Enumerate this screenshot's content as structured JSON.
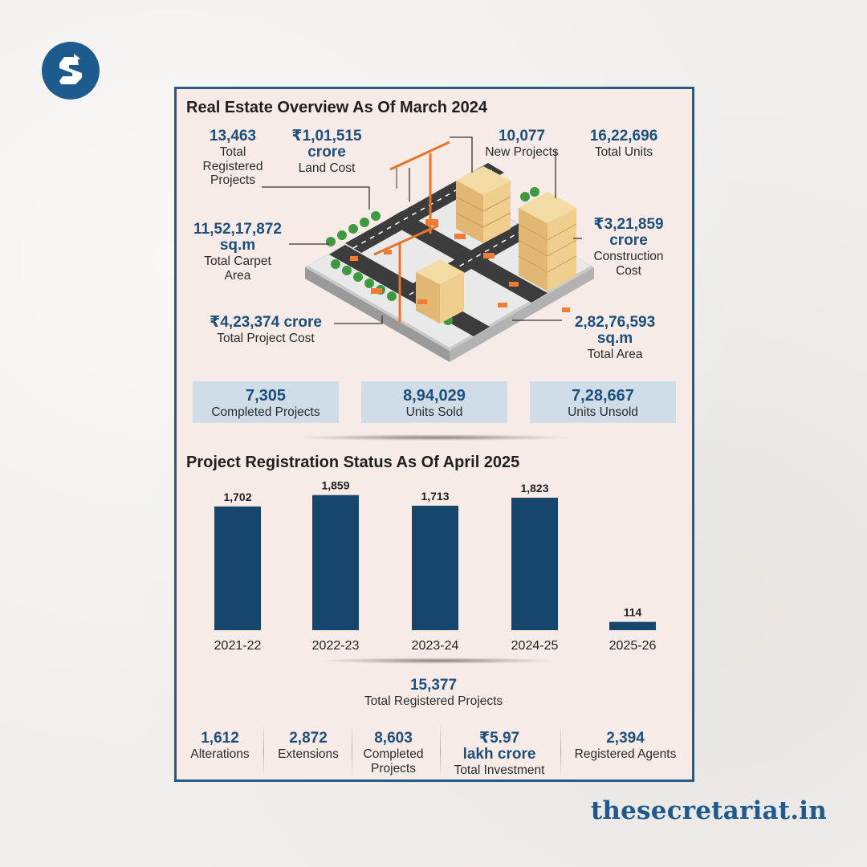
{
  "brand": {
    "site": "thesecretariat.in",
    "logo_icon": "secretariat-s-logo-icon",
    "color": "#1d5a8e"
  },
  "overview": {
    "title": "Real Estate Overview As Of March 2024",
    "stats": {
      "registered_projects": {
        "value": "13,463",
        "label": "Total Registered Projects"
      },
      "land_cost": {
        "value": "₹1,01,515",
        "value2": "crore",
        "label": "Land Cost"
      },
      "new_projects": {
        "value": "10,077",
        "label": "New Projects"
      },
      "total_units": {
        "value": "16,22,696",
        "label": "Total Units"
      },
      "carpet_area": {
        "value": "11,52,17,872",
        "value2": "sq.m",
        "label": "Total Carpet Area"
      },
      "construction_cost": {
        "value": "₹3,21,859",
        "value2": "crore",
        "label": "Construction Cost"
      },
      "project_cost": {
        "value": "₹4,23,374 crore",
        "label": "Total Project Cost"
      },
      "total_area": {
        "value": "2,82,76,593",
        "value2": "sq.m",
        "label": "Total Area"
      }
    },
    "boxes": [
      {
        "value": "7,305",
        "label": "Completed Projects"
      },
      {
        "value": "8,94,029",
        "label": "Units Sold"
      },
      {
        "value": "7,28,667",
        "label": "Units Unsold"
      }
    ],
    "illustration": "isometric-city-construction-illustration"
  },
  "chart_data": {
    "type": "bar",
    "title": "Project Registration Status As Of April 2025",
    "categories": [
      "2021-22",
      "2022-23",
      "2023-24",
      "2024-25",
      "2025-26"
    ],
    "values": [
      1702,
      1859,
      1713,
      1823,
      114
    ],
    "value_labels": [
      "1,702",
      "1,859",
      "1,713",
      "1,823",
      "114"
    ],
    "bar_color": "#17466c",
    "ylim": [
      0,
      1900
    ],
    "grid": false,
    "xlabel": "",
    "ylabel": ""
  },
  "summary": {
    "total": {
      "value": "15,377",
      "label": "Total Registered Projects"
    },
    "items": [
      {
        "value": "1,612",
        "label": "Alterations"
      },
      {
        "value": "2,872",
        "label": "Extensions"
      },
      {
        "value": "8,603",
        "label": "Completed Projects"
      },
      {
        "value": "₹5.97",
        "value2": "lakh crore",
        "label": "Total Investment"
      },
      {
        "value": "2,394",
        "label": "Registered Agents"
      }
    ]
  }
}
